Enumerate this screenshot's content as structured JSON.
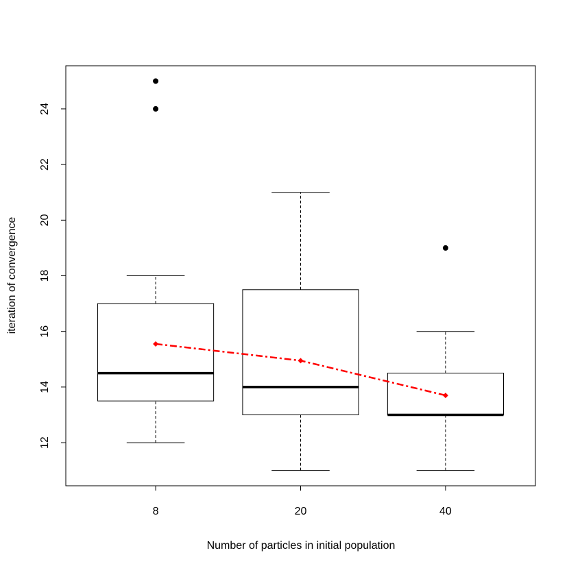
{
  "chart_data": {
    "type": "box",
    "xlabel": "Number of particles in initial population",
    "ylabel": "iteration of convergence",
    "categories": [
      "8",
      "20",
      "40"
    ],
    "boxes": [
      {
        "whislo": 12,
        "q1": 13.5,
        "med": 14.5,
        "q3": 17,
        "whishi": 18,
        "outliers": [
          24,
          25
        ]
      },
      {
        "whislo": 11,
        "q1": 13,
        "med": 14,
        "q3": 17.5,
        "whishi": 21,
        "outliers": []
      },
      {
        "whislo": 11,
        "q1": 13,
        "med": 13,
        "q3": 14.5,
        "whishi": 16,
        "outliers": [
          19
        ]
      }
    ],
    "color": "#000000",
    "means": {
      "color": "#ff0000",
      "values": [
        15.55,
        14.95,
        13.7
      ]
    },
    "ylim": [
      10.45,
      25.55
    ],
    "yticks": [
      12,
      14,
      16,
      18,
      20,
      22,
      24
    ]
  }
}
